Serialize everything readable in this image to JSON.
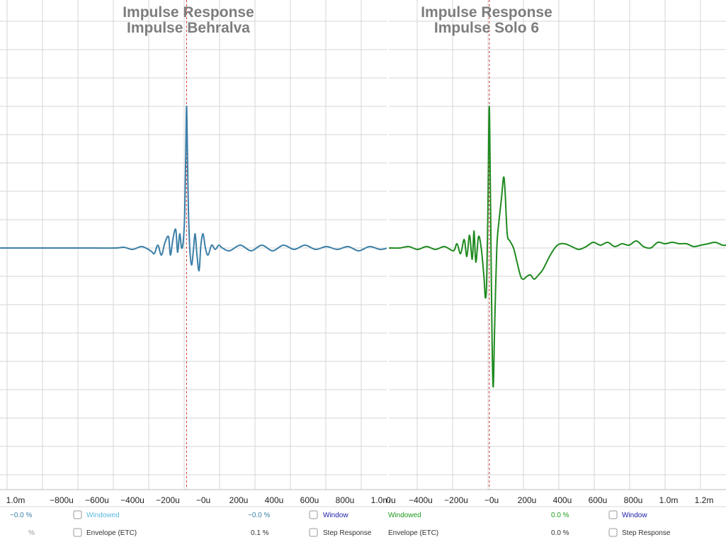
{
  "colors": {
    "left_trace": "#3b7fa8",
    "right_trace": "#1f8a1f",
    "marker": "#d23030",
    "grid": "#d4d4d4"
  },
  "chart_data": [
    {
      "type": "line",
      "title": "Impulse Response",
      "subtitle": "Impulse Behralva",
      "x_tick_labels": [
        "1.0m",
        "−800u",
        "−600u",
        "−400u",
        "−200u",
        "−0u",
        "200u",
        "400u",
        "600u",
        "800u",
        "1.0m"
      ],
      "xlim_us": [
        -1040,
        1120
      ],
      "ylim": [
        -1,
        1
      ],
      "marker_x_us": 0,
      "grid": true,
      "series": [
        {
          "color": "#3b7fa8",
          "points": [
            [
              -1040,
              0
            ],
            [
              -800,
              0
            ],
            [
              -600,
              0
            ],
            [
              -400,
              0
            ],
            [
              -350,
              0.005
            ],
            [
              -300,
              -0.01
            ],
            [
              -250,
              0.01
            ],
            [
              -200,
              -0.02
            ],
            [
              -180,
              -0.04
            ],
            [
              -160,
              0.02
            ],
            [
              -140,
              -0.05
            ],
            [
              -120,
              0.04
            ],
            [
              -100,
              0.08
            ],
            [
              -90,
              -0.05
            ],
            [
              -75,
              0.07
            ],
            [
              -60,
              0.13
            ],
            [
              -50,
              -0.03
            ],
            [
              -38,
              0.1
            ],
            [
              -28,
              0.0
            ],
            [
              -18,
              0.05
            ],
            [
              -10,
              0.25
            ],
            [
              -4,
              0.7
            ],
            [
              0,
              1.0
            ],
            [
              4,
              0.75
            ],
            [
              10,
              0.3
            ],
            [
              18,
              0.0
            ],
            [
              28,
              -0.12
            ],
            [
              38,
              -0.02
            ],
            [
              48,
              0.1
            ],
            [
              58,
              -0.05
            ],
            [
              70,
              -0.16
            ],
            [
              80,
              0.02
            ],
            [
              92,
              0.1
            ],
            [
              105,
              0.0
            ],
            [
              120,
              -0.05
            ],
            [
              140,
              0.02
            ],
            [
              160,
              -0.01
            ],
            [
              180,
              0.02
            ],
            [
              200,
              0.0
            ],
            [
              240,
              -0.02
            ],
            [
              300,
              0.02
            ],
            [
              360,
              -0.02
            ],
            [
              420,
              0.02
            ],
            [
              480,
              -0.02
            ],
            [
              540,
              0.02
            ],
            [
              600,
              -0.01
            ],
            [
              660,
              0.02
            ],
            [
              720,
              -0.01
            ],
            [
              780,
              0.01
            ],
            [
              840,
              -0.01
            ],
            [
              900,
              0.01
            ],
            [
              960,
              -0.02
            ],
            [
              1020,
              0.01
            ],
            [
              1080,
              -0.01
            ],
            [
              1120,
              0.0
            ]
          ]
        }
      ]
    },
    {
      "type": "line",
      "title": "Impulse Response",
      "subtitle": "Impulse Solo 6",
      "x_tick_labels": [
        "0u",
        "−400u",
        "−200u",
        "−0u",
        "200u",
        "400u",
        "600u",
        "800u",
        "1.0m",
        "1.2m"
      ],
      "xlim_us": [
        -560,
        1320
      ],
      "ylim": [
        -1,
        1
      ],
      "marker_x_us": 0,
      "grid": true,
      "series": [
        {
          "color": "#1f8a1f",
          "points": [
            [
              -560,
              0
            ],
            [
              -500,
              0.0
            ],
            [
              -450,
              0.01
            ],
            [
              -400,
              -0.01
            ],
            [
              -350,
              0.01
            ],
            [
              -300,
              -0.01
            ],
            [
              -250,
              0.01
            ],
            [
              -200,
              -0.02
            ],
            [
              -180,
              0.03
            ],
            [
              -160,
              -0.04
            ],
            [
              -140,
              0.06
            ],
            [
              -125,
              -0.06
            ],
            [
              -110,
              0.09
            ],
            [
              -95,
              -0.08
            ],
            [
              -85,
              0.12
            ],
            [
              -75,
              -0.1
            ],
            [
              -60,
              0.08
            ],
            [
              -45,
              0.0
            ],
            [
              -30,
              -0.2
            ],
            [
              -22,
              -0.35
            ],
            [
              -15,
              -0.25
            ],
            [
              -8,
              0.25
            ],
            [
              -3,
              0.8
            ],
            [
              0,
              1.0
            ],
            [
              3,
              0.8
            ],
            [
              8,
              0.2
            ],
            [
              15,
              -0.6
            ],
            [
              22,
              -0.98
            ],
            [
              30,
              -0.55
            ],
            [
              42,
              0.0
            ],
            [
              55,
              0.2
            ],
            [
              68,
              0.35
            ],
            [
              80,
              0.5
            ],
            [
              88,
              0.4
            ],
            [
              100,
              0.1
            ],
            [
              115,
              0.05
            ],
            [
              135,
              0.0
            ],
            [
              155,
              -0.1
            ],
            [
              175,
              -0.2
            ],
            [
              190,
              -0.22
            ],
            [
              210,
              -0.2
            ],
            [
              230,
              -0.19
            ],
            [
              250,
              -0.22
            ],
            [
              275,
              -0.19
            ],
            [
              300,
              -0.15
            ],
            [
              340,
              -0.05
            ],
            [
              380,
              0.02
            ],
            [
              420,
              0.03
            ],
            [
              460,
              0.01
            ],
            [
              500,
              -0.01
            ],
            [
              540,
              0.01
            ],
            [
              580,
              0.04
            ],
            [
              620,
              0.02
            ],
            [
              660,
              0.04
            ],
            [
              700,
              0.01
            ],
            [
              740,
              0.03
            ],
            [
              780,
              0.02
            ],
            [
              820,
              0.05
            ],
            [
              860,
              0.01
            ],
            [
              900,
              0.0
            ],
            [
              940,
              0.04
            ],
            [
              980,
              0.03
            ],
            [
              1020,
              0.04
            ],
            [
              1060,
              0.03
            ],
            [
              1100,
              0.03
            ],
            [
              1140,
              0.01
            ],
            [
              1180,
              0.02
            ],
            [
              1220,
              0.03
            ],
            [
              1260,
              0.04
            ],
            [
              1300,
              0.02
            ],
            [
              1320,
              0.02
            ]
          ]
        }
      ]
    }
  ],
  "controls": {
    "left": {
      "pct_row1": "−0.0 %",
      "windowed_label": "Windowed",
      "pct_row1b": "−0.0 %",
      "window_label": "Window",
      "pct_row2": "%",
      "envelope_label": "Envelope (ETC)",
      "pct_row2b": "0.1 %",
      "step_label": "Step Response"
    },
    "right": {
      "windowed_label": "Windowed",
      "pct_row1": "0.0 %",
      "window_label": "Window",
      "envelope_label": "Envelope (ETC)",
      "pct_row2": "0.0 %",
      "step_label": "Step Response"
    }
  }
}
